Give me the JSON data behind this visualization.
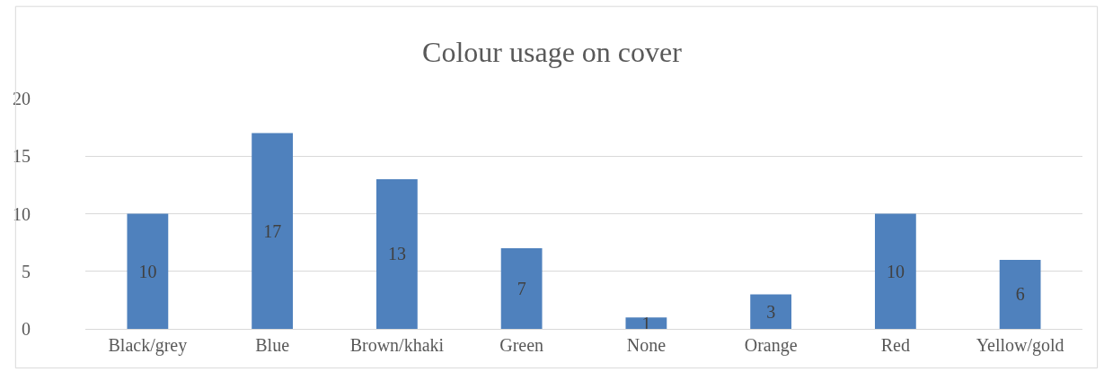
{
  "chart_data": {
    "type": "bar",
    "title": "Colour usage on cover",
    "categories": [
      "Black/grey",
      "Blue",
      "Brown/khaki",
      "Green",
      "None",
      "Orange",
      "Red",
      "Yellow/gold"
    ],
    "values": [
      10,
      17,
      13,
      7,
      1,
      3,
      10,
      6
    ],
    "color": "#4f81bd",
    "ylim": [
      0,
      20
    ],
    "yticks": [
      0,
      5,
      10,
      15,
      20
    ],
    "grid": "y",
    "data_labels": true,
    "legend": false
  }
}
